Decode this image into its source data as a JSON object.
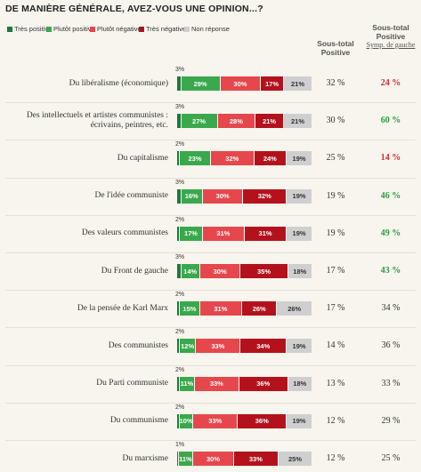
{
  "chart_data": {
    "type": "stacked-bar-horizontal",
    "title": "DE MANIÈRE GÉNÉRALE, AVEZ-VOUS UNE OPINION...?",
    "xlim": [
      0,
      100
    ],
    "categories": [
      "Du libéralisme (économique)",
      "Des intellectuels et artistes communistes : écrivains, peintres, etc.",
      "Du capitalisme",
      "De l'idée communiste",
      "Des valeurs communistes",
      "Du Front de gauche",
      "De la pensée de Karl Marx",
      "Des communistes",
      "Du Parti communiste",
      "Du communisme",
      "Du marxisme"
    ],
    "series": [
      {
        "name": "Très positive",
        "color": "#1b7a3c",
        "values": [
          3,
          3,
          2,
          3,
          2,
          3,
          2,
          2,
          2,
          2,
          1
        ],
        "value_labels": [
          "3%",
          "3%",
          "2%",
          "3%",
          "2%",
          "3%",
          "2%",
          "2%",
          "2%",
          "2%",
          "1%"
        ]
      },
      {
        "name": "Plutôt positive",
        "color": "#3aa84c",
        "values": [
          29,
          27,
          23,
          16,
          17,
          14,
          15,
          12,
          11,
          10,
          11
        ],
        "value_labels": [
          "29%",
          "27%",
          "23%",
          "16%",
          "17%",
          "14%",
          "15%",
          "12%",
          "11%",
          "10%",
          "11%"
        ]
      },
      {
        "name": "Plutôt négative",
        "color": "#e5474d",
        "values": [
          30,
          28,
          32,
          30,
          31,
          30,
          31,
          33,
          33,
          33,
          30
        ],
        "value_labels": [
          "30%",
          "28%",
          "32%",
          "30%",
          "31%",
          "30%",
          "31%",
          "33%",
          "33%",
          "33%",
          "30%"
        ]
      },
      {
        "name": "Très négative",
        "color": "#b3121c",
        "values": [
          17,
          21,
          24,
          32,
          31,
          35,
          26,
          34,
          36,
          36,
          33
        ],
        "value_labels": [
          "17%",
          "21%",
          "24%",
          "32%",
          "31%",
          "35%",
          "26%",
          "34%",
          "36%",
          "36%",
          "33%"
        ]
      },
      {
        "name": "Non réponse",
        "color": "#cfcfcf",
        "values": [
          21,
          21,
          19,
          19,
          19,
          18,
          26,
          19,
          18,
          19,
          25
        ],
        "value_labels": [
          "21%",
          "21%",
          "19%",
          "19%",
          "19%",
          "18%",
          "26%",
          "19%",
          "18%",
          "19%",
          "25%"
        ]
      }
    ],
    "columns": [
      {
        "name": "Sous-total Positive",
        "values": [
          32,
          30,
          25,
          19,
          19,
          17,
          17,
          14,
          13,
          12,
          12
        ],
        "value_labels": [
          "32 %",
          "30 %",
          "25 %",
          "19 %",
          "19 %",
          "17 %",
          "17 %",
          "14 %",
          "13 %",
          "12 %",
          "12 %"
        ],
        "colors": [
          "#333333",
          "#333333",
          "#333333",
          "#333333",
          "#333333",
          "#333333",
          "#333333",
          "#333333",
          "#333333",
          "#333333",
          "#333333"
        ]
      },
      {
        "name": "Sous-total Positive",
        "subname": "Symp. de gauche",
        "values": [
          24,
          60,
          14,
          46,
          49,
          43,
          34,
          36,
          33,
          29,
          25
        ],
        "value_labels": [
          "24 %",
          "60 %",
          "14 %",
          "46 %",
          "49 %",
          "43 %",
          "34 %",
          "36 %",
          "33 %",
          "29 %",
          "25 %"
        ],
        "colors": [
          "#d42a2f",
          "#2e9a44",
          "#d42a2f",
          "#2e9a44",
          "#2e9a44",
          "#2e9a44",
          "#333333",
          "#333333",
          "#333333",
          "#333333",
          "#333333"
        ]
      }
    ]
  }
}
